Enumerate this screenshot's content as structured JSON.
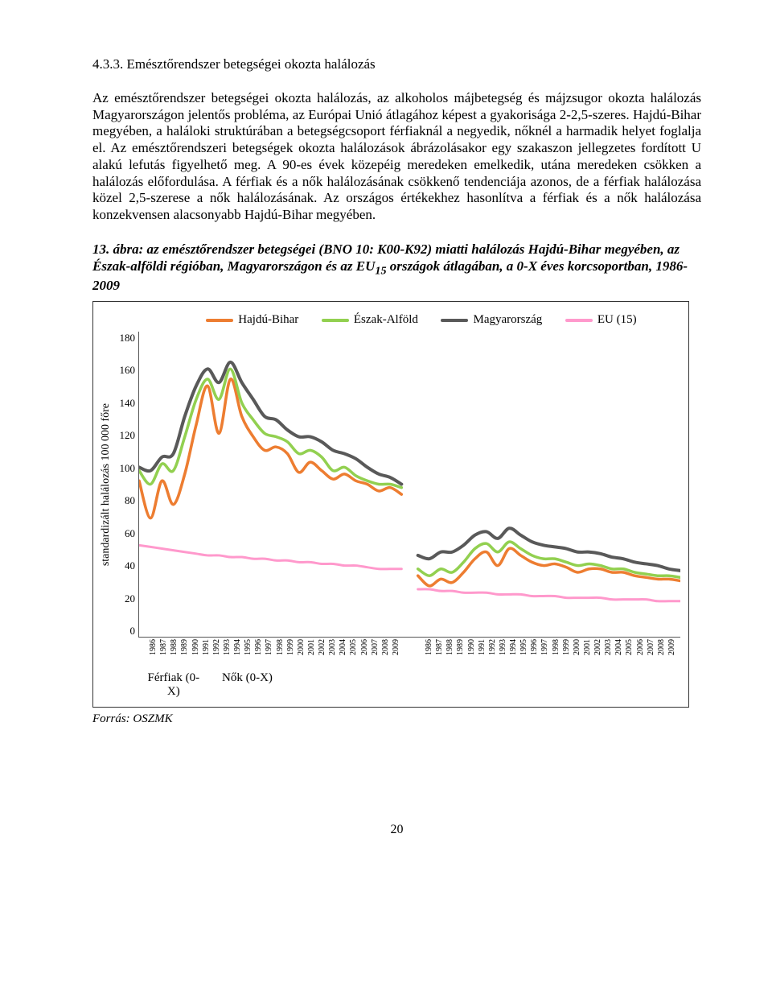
{
  "section_number": "4.3.3.",
  "section_title": "Emésztőrendszer betegségei okozta halálozás",
  "body_text": "Az emésztőrendszer betegségei okozta halálozás, az alkoholos májbetegség és májzsugor okozta halálozás Magyarországon jelentős probléma, az Európai Unió átlagához képest a gyakorisága 2-2,5-szeres. Hajdú-Bihar megyében, a haláloki struktúrában a betegségcsoport férfiaknál a negyedik, nőknél a harmadik helyet foglalja el. Az emésztőrendszeri betegségek okozta halálozások ábrázolásakor egy szakaszon jellegzetes fordított U alakú lefutás figyelhető meg. A 90-es évek közepéig meredeken emelkedik, utána meredeken csökken a halálozás előfordulása. A férfiak és a nők halálozásának csökkenő tendenciája azonos, de a férfiak halálozása közel 2,5-szerese a nők halálozásának. Az országos értékekhez hasonlítva a férfiak és a nők halálozása konzekvensen alacsonyabb Hajdú-Bihar megyében.",
  "figure_caption_prefix": "13. ábra: az emésztőrendszer betegségei (BNO 10: K00-K92) miatti halálozás Hajdú-Bihar megyében, az Észak-alföldi régióban, Magyarországon és az EU",
  "figure_caption_sub": "15",
  "figure_caption_suffix": " országok átlagában, a 0-X éves korcsoportban, 1986-2009",
  "chart": {
    "type": "line",
    "y_title": "standardizált halálozás 100 000 főre",
    "y_ticks": [
      "180",
      "160",
      "140",
      "120",
      "100",
      "80",
      "60",
      "40",
      "20",
      "0"
    ],
    "ylim": [
      0,
      180
    ],
    "years": [
      "1986",
      "1987",
      "1988",
      "1989",
      "1990",
      "1991",
      "1992",
      "1993",
      "1994",
      "1995",
      "1996",
      "1997",
      "1998",
      "1999",
      "2000",
      "2001",
      "2002",
      "2003",
      "2004",
      "2005",
      "2006",
      "2007",
      "2008",
      "2009"
    ],
    "panels": [
      {
        "label": "Férfiak (0-X)"
      },
      {
        "label": "Nők (0-X)"
      }
    ],
    "series": [
      {
        "name": "Hajdú-Bihar",
        "color": "#ed7d31",
        "width": 3.5,
        "men": [
          92,
          70,
          92,
          78,
          96,
          125,
          148,
          120,
          152,
          130,
          118,
          110,
          112,
          108,
          97,
          103,
          98,
          93,
          96,
          92,
          90,
          86,
          88,
          84
        ],
        "women": [
          36,
          30,
          34,
          32,
          38,
          46,
          50,
          42,
          52,
          48,
          44,
          42,
          43,
          41,
          38,
          40,
          40,
          38,
          38,
          36,
          35,
          34,
          34,
          33
        ]
      },
      {
        "name": "Észak-Alföld",
        "color": "#92d050",
        "width": 3.5,
        "men": [
          98,
          90,
          102,
          98,
          118,
          140,
          152,
          140,
          158,
          138,
          128,
          120,
          118,
          115,
          108,
          110,
          106,
          98,
          100,
          95,
          92,
          90,
          90,
          88
        ],
        "women": [
          40,
          36,
          40,
          38,
          44,
          52,
          55,
          50,
          56,
          52,
          48,
          46,
          46,
          44,
          42,
          43,
          42,
          40,
          40,
          38,
          37,
          36,
          36,
          35
        ]
      },
      {
        "name": "Magyarország",
        "color": "#595959",
        "width": 4,
        "men": [
          100,
          98,
          106,
          108,
          130,
          148,
          158,
          150,
          162,
          150,
          140,
          130,
          128,
          122,
          118,
          118,
          115,
          110,
          108,
          105,
          100,
          96,
          94,
          90
        ],
        "women": [
          48,
          46,
          50,
          50,
          54,
          60,
          62,
          58,
          64,
          60,
          56,
          54,
          53,
          52,
          50,
          50,
          49,
          47,
          46,
          44,
          43,
          42,
          40,
          39
        ]
      },
      {
        "name": "EU (15)",
        "color": "#ff99cc",
        "width": 3,
        "men": [
          54,
          53,
          52,
          51,
          50,
          49,
          48,
          48,
          47,
          47,
          46,
          46,
          45,
          45,
          44,
          44,
          43,
          43,
          42,
          42,
          41,
          40,
          40,
          40
        ],
        "women": [
          28,
          28,
          27,
          27,
          26,
          26,
          26,
          25,
          25,
          25,
          24,
          24,
          24,
          23,
          23,
          23,
          23,
          22,
          22,
          22,
          22,
          21,
          21,
          21
        ]
      }
    ]
  },
  "source_label": "Forrás: OSZMK",
  "page_number": "20"
}
